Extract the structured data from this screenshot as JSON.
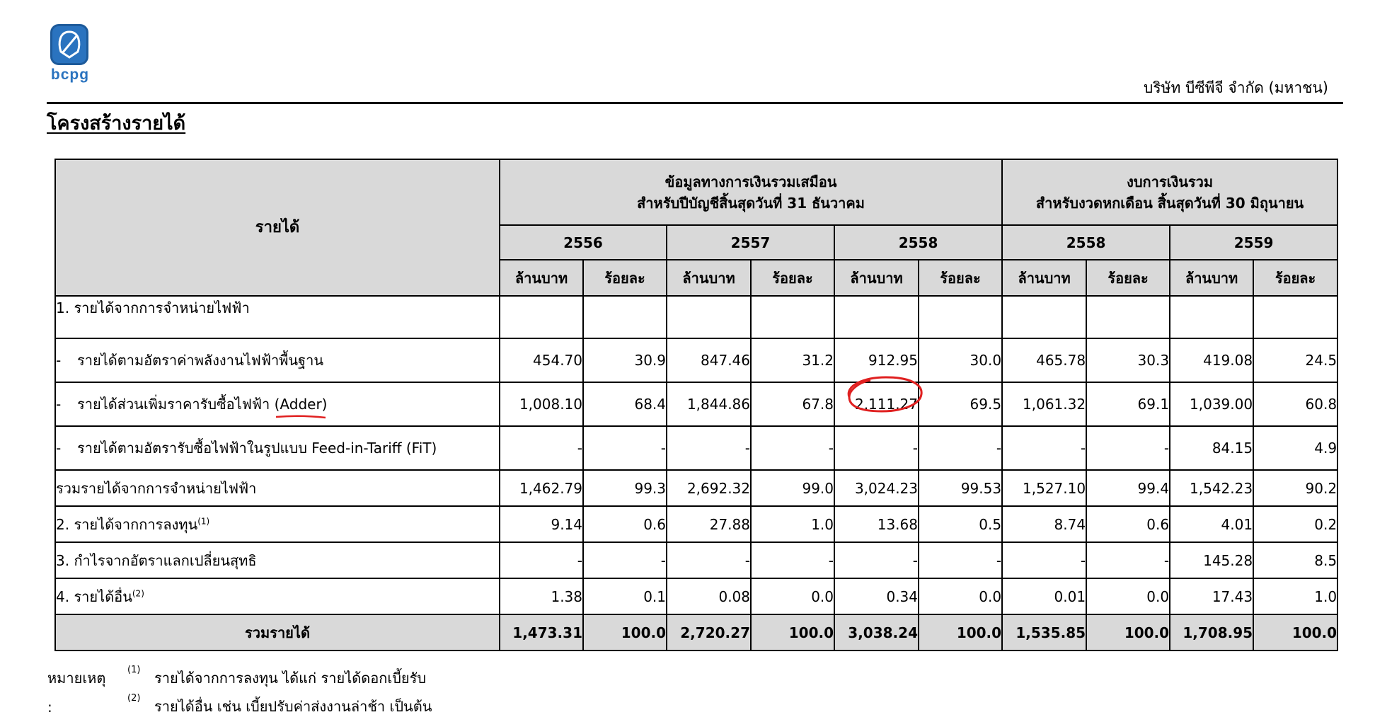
{
  "header": {
    "logo_text": "bcpg",
    "company": "บริษัท บีซีพีจี จำกัด (มหาชน)",
    "title": "โครงสร้างรายได้"
  },
  "table": {
    "label_header": "รายได้",
    "group1_line1": "ข้อมูลทางการเงินรวมเสมือน",
    "group1_line2": "สำหรับปีบัญชีสิ้นสุดวันที่ 31 ธันวาคม",
    "group2_line1": "งบการเงินรวม",
    "group2_line2": "สำหรับงวดหกเดือน สิ้นสุดวันที่ 30 มิถุนายน",
    "years": [
      "2556",
      "2557",
      "2558",
      "2558",
      "2559"
    ],
    "unit_amount": "ล้านบาท",
    "unit_percent": "ร้อยละ",
    "rows": [
      {
        "label": "1. รายได้จากการจำหน่ายไฟฟ้า",
        "values": [
          "",
          "",
          "",
          "",
          "",
          "",
          "",
          "",
          "",
          ""
        ]
      },
      {
        "label": "รายได้ตามอัตราค่าพลังงานไฟฟ้าพื้นฐาน",
        "values": [
          "454.70",
          "30.9",
          "847.46",
          "31.2",
          "912.95",
          "30.0",
          "465.78",
          "30.3",
          "419.08",
          "24.5"
        ]
      },
      {
        "label": "รายได้ส่วนเพิ่มราคารับซื้อไฟฟ้า",
        "label_extra": "(Adder)",
        "values": [
          "1,008.10",
          "68.4",
          "1,844.86",
          "67.8",
          "2,111.27",
          "69.5",
          "1,061.32",
          "69.1",
          "1,039.00",
          "60.8"
        ]
      },
      {
        "label": "รายได้ตามอัตรารับซื้อไฟฟ้าในรูปแบบ Feed-in-Tariff (FiT)",
        "values": [
          "-",
          "-",
          "-",
          "-",
          "-",
          "-",
          "-",
          "-",
          "84.15",
          "4.9"
        ]
      },
      {
        "label": "รวมรายได้จากการจำหน่ายไฟฟ้า",
        "values": [
          "1,462.79",
          "99.3",
          "2,692.32",
          "99.0",
          "3,024.23",
          "99.53",
          "1,527.10",
          "99.4",
          "1,542.23",
          "90.2"
        ]
      },
      {
        "label": "2. รายได้จากการลงทุน",
        "sup": "(1)",
        "values": [
          "9.14",
          "0.6",
          "27.88",
          "1.0",
          "13.68",
          "0.5",
          "8.74",
          "0.6",
          "4.01",
          "0.2"
        ]
      },
      {
        "label": "3. กำไรจากอัตราแลกเปลี่ยนสุทธิ",
        "values": [
          "-",
          "-",
          "-",
          "-",
          "-",
          "-",
          "-",
          "-",
          "145.28",
          "8.5"
        ]
      },
      {
        "label": "4. รายได้อื่น",
        "sup": "(2)",
        "values": [
          "1.38",
          "0.1",
          "0.08",
          "0.0",
          "0.34",
          "0.0",
          "0.01",
          "0.0",
          "17.43",
          "1.0"
        ]
      },
      {
        "label": "รวมรายได้",
        "values": [
          "1,473.31",
          "100.0",
          "2,720.27",
          "100.0",
          "3,038.24",
          "100.0",
          "1,535.85",
          "100.0",
          "1,708.95",
          "100.0"
        ]
      }
    ]
  },
  "notes": {
    "head": "หมายเหตุ :",
    "items": [
      {
        "mark": "(1)",
        "text": "รายได้จากการลงทุน ได้แก่ รายได้ดอกเบี้ยรับ"
      },
      {
        "mark": "(2)",
        "text": "รายได้อื่น เช่น เบี้ยปรับค่าส่งงานล่าช้า เป็นต้น"
      }
    ]
  },
  "colors": {
    "header_fill": "#d9d9d9",
    "logo_blue": "#2a73bf",
    "annotation_red": "#e02020"
  }
}
